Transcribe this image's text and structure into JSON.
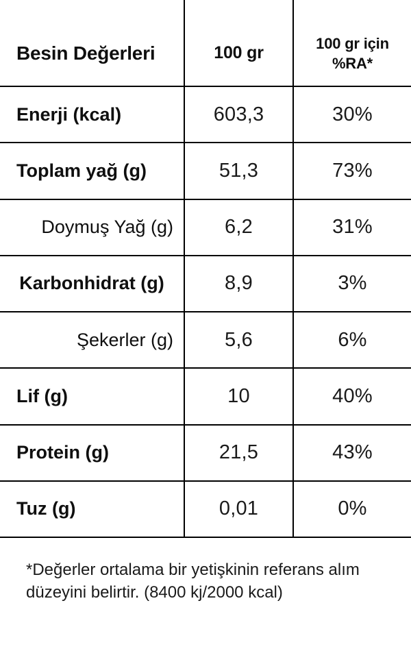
{
  "colors": {
    "background": "#ffffff",
    "border": "#000000",
    "heading_text": "#0f0f0f",
    "value_text": "#1a1a1a"
  },
  "table": {
    "header": {
      "name_col": "Besin Değerleri",
      "per100_col": "100 gr",
      "ra_col": "100 gr için %RA*"
    },
    "rows": [
      {
        "label": "Enerji (kcal)",
        "per100": "603,3",
        "ra": "30%",
        "align": "left",
        "sub": false
      },
      {
        "label": "Toplam yağ (g)",
        "per100": "51,3",
        "ra": "73%",
        "align": "left",
        "sub": false
      },
      {
        "label": "Doymuş Yağ (g)",
        "per100": "6,2",
        "ra": "31%",
        "align": "right",
        "sub": true
      },
      {
        "label": "Karbonhidrat (g)",
        "per100": "8,9",
        "ra": "3%",
        "align": "center",
        "sub": false
      },
      {
        "label": "Şekerler (g)",
        "per100": "5,6",
        "ra": "6%",
        "align": "right",
        "sub": true
      },
      {
        "label": "Lif (g)",
        "per100": "10",
        "ra": "40%",
        "align": "left",
        "sub": false
      },
      {
        "label": "Protein (g)",
        "per100": "21,5",
        "ra": "43%",
        "align": "left",
        "sub": false
      },
      {
        "label": "Tuz (g)",
        "per100": "0,01",
        "ra": "0%",
        "align": "left",
        "sub": false
      }
    ]
  },
  "footnote": {
    "line1": "*Değerler ortalama bir yetişkinin referans alım",
    "line2": "düzeyini belirtir. (8400 kj/2000 kcal)"
  }
}
